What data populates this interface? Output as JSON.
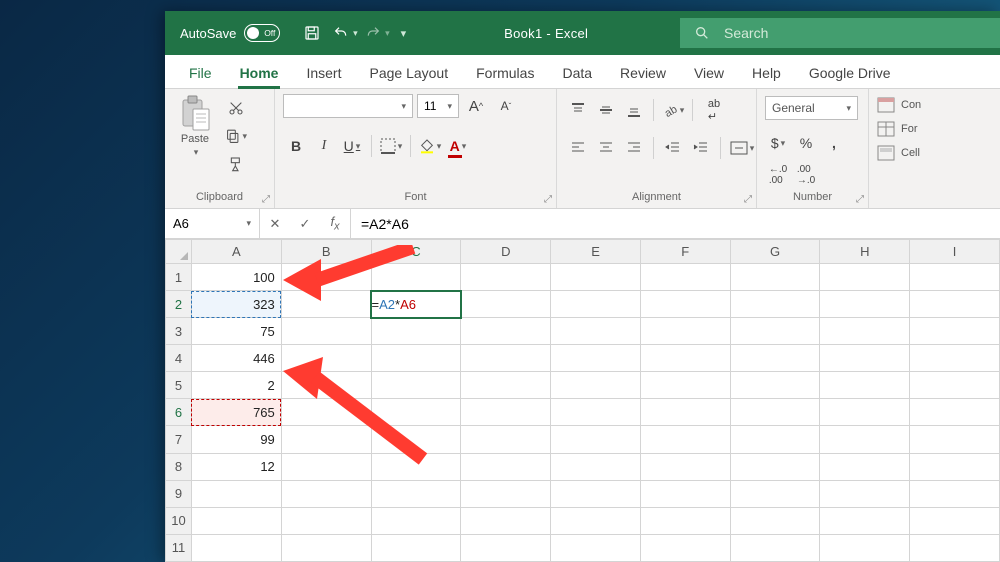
{
  "title": "Book1  -  Excel",
  "autosave": {
    "label": "AutoSave",
    "state": "Off"
  },
  "search": {
    "placeholder": "Search"
  },
  "tabs": [
    "File",
    "Home",
    "Insert",
    "Page Layout",
    "Formulas",
    "Data",
    "Review",
    "View",
    "Help",
    "Google Drive"
  ],
  "active_tab": "Home",
  "ribbon": {
    "clipboard": {
      "label": "Clipboard",
      "paste": "Paste"
    },
    "font": {
      "label": "Font",
      "size": "11",
      "name": ""
    },
    "alignment": {
      "label": "Alignment"
    },
    "number": {
      "label": "Number",
      "format": "General"
    },
    "cells": {
      "cond": "Con",
      "format": "For",
      "cell": "Cell"
    }
  },
  "fbar": {
    "namebox": "A6",
    "formula": "=A2*A6",
    "formula_parts": {
      "eq": "=",
      "ref1": "A2",
      "op": "*",
      "ref2": "A6"
    }
  },
  "columns": [
    "A",
    "B",
    "C",
    "D",
    "E",
    "F",
    "G",
    "H",
    "I"
  ],
  "row_count": 11,
  "colA": {
    "1": "100",
    "2": "323",
    "3": "75",
    "4": "446",
    "5": "2",
    "6": "765",
    "7": "99",
    "8": "12"
  },
  "editing_cell": {
    "row": 2,
    "col": "C"
  },
  "ref_cells": {
    "blue": {
      "row": 2,
      "col": "A"
    },
    "red": {
      "row": 6,
      "col": "A"
    }
  },
  "colors": {
    "excel_green": "#217346",
    "excel_green_light": "#439e6f",
    "arrow_red": "#ff3b30",
    "ref_blue": "#2e75b6",
    "ref_red": "#c00000"
  }
}
